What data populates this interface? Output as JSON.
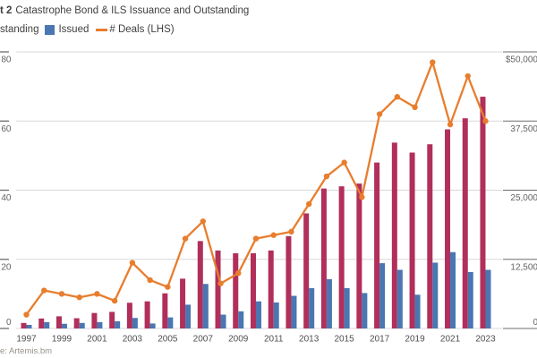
{
  "header": {
    "title_prefix": "t 2",
    "title": "Catastrophe Bond & ILS Issuance and Outstanding"
  },
  "legend": {
    "outstanding": "standing",
    "issued": "Issued",
    "deals": "# Deals (LHS)"
  },
  "source_note": "e: Artemis.bm",
  "colors": {
    "outstanding_bar": "#b12f5b",
    "issued_bar": "#4a76b2",
    "deals_line": "#e87d2e",
    "gridline": "#d9d9d9",
    "axis_tick": "#6e6e6e",
    "axis_text": "#636363",
    "year_text": "#4f4f4f"
  },
  "chart_data": {
    "type": "bar",
    "subtype": "grouped bars with overlaid line (dual axis)",
    "x": [
      1997,
      1998,
      1999,
      2000,
      2001,
      2002,
      2003,
      2004,
      2005,
      2006,
      2007,
      2008,
      2009,
      2010,
      2011,
      2012,
      2013,
      2014,
      2015,
      2016,
      2017,
      2018,
      2019,
      2020,
      2021,
      2022,
      2023
    ],
    "series": [
      {
        "name": "Outstanding",
        "type": "bar",
        "axis": "right",
        "values": [
          1000,
          1800,
          2200,
          1850,
          2800,
          3000,
          4650,
          4900,
          6350,
          9000,
          15800,
          14100,
          13600,
          13600,
          14100,
          16700,
          20800,
          25300,
          25700,
          26200,
          30000,
          33600,
          31800,
          33300,
          36000,
          38000,
          41900
        ]
      },
      {
        "name": "Issued",
        "type": "bar",
        "axis": "right",
        "values": [
          650,
          1150,
          850,
          1000,
          1150,
          1300,
          1900,
          900,
          2000,
          4300,
          8050,
          2500,
          3100,
          4900,
          4700,
          5900,
          7300,
          8900,
          7300,
          6400,
          11800,
          10600,
          6100,
          11900,
          13800,
          10200,
          10600
        ]
      },
      {
        "name": "# Deals (LHS)",
        "type": "line",
        "axis": "left",
        "values": [
          4,
          11,
          10,
          9,
          10,
          8,
          19,
          14,
          12,
          26,
          31,
          13,
          16,
          26,
          27,
          28,
          36,
          44,
          48,
          38,
          62,
          67,
          64,
          77,
          59,
          73,
          60
        ]
      }
    ],
    "left_axis": {
      "label": "# Deals (LHS)",
      "range": [
        0,
        80
      ],
      "ticks": [
        0,
        20,
        40,
        60,
        80
      ]
    },
    "right_axis": {
      "range": [
        0,
        50000
      ],
      "tick_labels_ascending": [
        "0",
        "12,500",
        "25,000",
        "37,500",
        "$50,000"
      ]
    },
    "x_tick_labels": [
      "1997",
      "1999",
      "2001",
      "2003",
      "2005",
      "2007",
      "2009",
      "2011",
      "2013",
      "2015",
      "2017",
      "2019",
      "2021",
      "2023"
    ],
    "grid": "horizontal",
    "legend_position": "top-left"
  }
}
